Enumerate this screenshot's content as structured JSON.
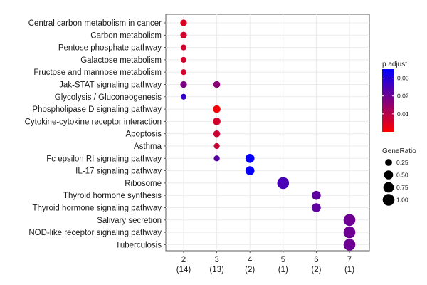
{
  "chart_data": {
    "type": "scatter",
    "title": "",
    "xlabel": "",
    "ylabel": "",
    "x_categories": [
      "2",
      "3",
      "4",
      "5",
      "6",
      "7"
    ],
    "x_subcategories": [
      "(14)",
      "(13)",
      "(2)",
      "(1)",
      "(2)",
      "(1)"
    ],
    "y_categories": [
      "Central carbon metabolism in cancer",
      "Carbon metabolism",
      "Pentose phosphate pathway",
      "Galactose metabolism",
      "Fructose and mannose metabolism",
      "Jak-STAT signaling pathway",
      "Glycolysis / Gluconeogenesis",
      "Phospholipase D signaling pathway",
      "Cytokine-cytokine receptor interaction",
      "Apoptosis",
      "Asthma",
      "Fc epsilon RI signaling pathway",
      "IL-17 signaling pathway",
      "Ribosome",
      "Thyroid hormone synthesis",
      "Thyroid hormone signaling pathway",
      "Salivary secretion",
      "NOD-like receptor signaling pathway",
      "Tuberculosis"
    ],
    "points": [
      {
        "x": "2",
        "y": "Central carbon metabolism in cancer",
        "gene_ratio": 0.21,
        "p_adjust": 0.005
      },
      {
        "x": "2",
        "y": "Carbon metabolism",
        "gene_ratio": 0.21,
        "p_adjust": 0.006
      },
      {
        "x": "2",
        "y": "Pentose phosphate pathway",
        "gene_ratio": 0.14,
        "p_adjust": 0.006
      },
      {
        "x": "2",
        "y": "Galactose metabolism",
        "gene_ratio": 0.14,
        "p_adjust": 0.006
      },
      {
        "x": "2",
        "y": "Fructose and mannose metabolism",
        "gene_ratio": 0.14,
        "p_adjust": 0.006
      },
      {
        "x": "2",
        "y": "Jak-STAT signaling pathway",
        "gene_ratio": 0.21,
        "p_adjust": 0.018
      },
      {
        "x": "2",
        "y": "Glycolysis / Gluconeogenesis",
        "gene_ratio": 0.14,
        "p_adjust": 0.028
      },
      {
        "x": "3",
        "y": "Jak-STAT signaling pathway",
        "gene_ratio": 0.23,
        "p_adjust": 0.016
      },
      {
        "x": "3",
        "y": "Phospholipase D signaling pathway",
        "gene_ratio": 0.31,
        "p_adjust": 0.001
      },
      {
        "x": "3",
        "y": "Cytokine-cytokine receptor interaction",
        "gene_ratio": 0.31,
        "p_adjust": 0.006
      },
      {
        "x": "3",
        "y": "Apoptosis",
        "gene_ratio": 0.23,
        "p_adjust": 0.007
      },
      {
        "x": "3",
        "y": "Asthma",
        "gene_ratio": 0.15,
        "p_adjust": 0.007
      },
      {
        "x": "3",
        "y": "Fc epsilon RI signaling pathway",
        "gene_ratio": 0.15,
        "p_adjust": 0.023
      },
      {
        "x": "4",
        "y": "Fc epsilon RI signaling pathway",
        "gene_ratio": 0.5,
        "p_adjust": 0.034
      },
      {
        "x": "4",
        "y": "IL-17 signaling pathway",
        "gene_ratio": 0.5,
        "p_adjust": 0.034
      },
      {
        "x": "5",
        "y": "Ribosome",
        "gene_ratio": 1.0,
        "p_adjust": 0.025
      },
      {
        "x": "6",
        "y": "Thyroid hormone synthesis",
        "gene_ratio": 0.5,
        "p_adjust": 0.022
      },
      {
        "x": "6",
        "y": "Thyroid hormone signaling pathway",
        "gene_ratio": 0.5,
        "p_adjust": 0.022
      },
      {
        "x": "7",
        "y": "Salivary secretion",
        "gene_ratio": 1.0,
        "p_adjust": 0.02
      },
      {
        "x": "7",
        "y": "NOD-like receptor signaling pathway",
        "gene_ratio": 1.0,
        "p_adjust": 0.02
      },
      {
        "x": "7",
        "y": "Tuberculosis",
        "gene_ratio": 1.0,
        "p_adjust": 0.02
      }
    ],
    "color_legend": {
      "title": "p.adjust",
      "ticks": [
        0.01,
        0.02,
        0.03
      ],
      "tick_labels": [
        "0.01",
        "0.02",
        "0.03"
      ],
      "range": [
        0.0,
        0.035
      ],
      "low_color": "#ff0000",
      "high_color": "#0000ff"
    },
    "size_legend": {
      "title": "GeneRatio",
      "values": [
        0.25,
        0.5,
        0.75,
        1.0
      ],
      "labels": [
        "0.25",
        "0.50",
        "0.75",
        "1.00"
      ]
    },
    "grid": true,
    "legend_position": "right"
  }
}
